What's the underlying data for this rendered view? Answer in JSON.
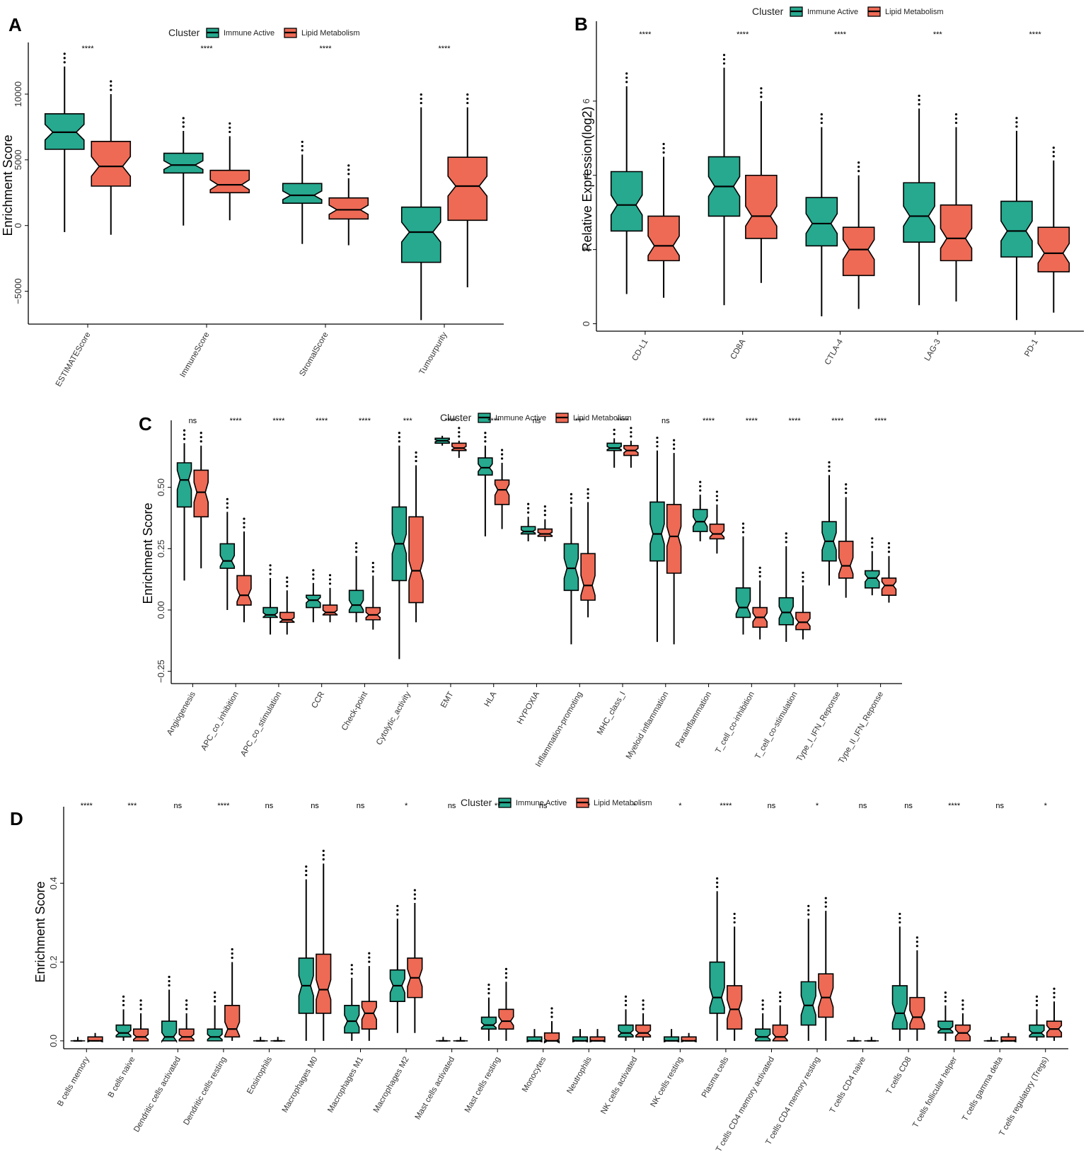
{
  "colors": {
    "immune_active": "#26A98F",
    "lipid_metabolism": "#EE6A55"
  },
  "legend": {
    "title": "Cluster",
    "series": [
      "Immune Active",
      "Lipid Metabolism"
    ]
  },
  "chart_data": [
    {
      "panel": "A",
      "type": "boxplot",
      "ylabel": "Enrichment Score",
      "ylim": [
        -7500,
        13500
      ],
      "yticks": [
        -5000,
        0,
        5000,
        10000
      ],
      "categories": [
        "ESTIMATEScore",
        "ImmuneScore",
        "StromalScore",
        "Tumourpurity"
      ],
      "significance": [
        "****",
        "****",
        "****",
        "****"
      ],
      "series": [
        {
          "name": "Immune Active",
          "stats": [
            [
              -500,
              5800,
              7100,
              8500,
              12100
            ],
            [
              0,
              4000,
              4600,
              5500,
              7200
            ],
            [
              -1400,
              1700,
              2300,
              3200,
              5400
            ],
            [
              -7200,
              -2800,
              -500,
              1400,
              9000
            ]
          ]
        },
        {
          "name": "Lipid Metabolism",
          "stats": [
            [
              -700,
              3000,
              4500,
              6400,
              10000
            ],
            [
              400,
              2500,
              3100,
              4200,
              6800
            ],
            [
              -1500,
              500,
              1200,
              2100,
              3600
            ],
            [
              -4700,
              400,
              3000,
              5200,
              9000
            ]
          ]
        }
      ]
    },
    {
      "panel": "B",
      "type": "boxplot",
      "ylabel": "Relative Expression(log2)",
      "ylim": [
        -0.2,
        8.0
      ],
      "yticks": [
        0,
        2,
        4,
        6
      ],
      "categories": [
        "CD-L1",
        "CD8A",
        "CTLA-4",
        "LAG-3",
        "PD-1"
      ],
      "significance": [
        "****",
        "****",
        "****",
        "***",
        "****"
      ],
      "series": [
        {
          "name": "Immune Active",
          "stats": [
            [
              0.8,
              2.5,
              3.2,
              4.1,
              6.4
            ],
            [
              0.5,
              2.9,
              3.7,
              4.5,
              6.9
            ],
            [
              0.2,
              2.1,
              2.7,
              3.4,
              5.3
            ],
            [
              0.5,
              2.2,
              2.9,
              3.8,
              5.8
            ],
            [
              0.1,
              1.8,
              2.5,
              3.3,
              5.2
            ]
          ]
        },
        {
          "name": "Lipid Metabolism",
          "stats": [
            [
              0.7,
              1.7,
              2.1,
              2.9,
              4.5
            ],
            [
              1.1,
              2.3,
              2.9,
              4.0,
              6.0
            ],
            [
              0.4,
              1.3,
              2.0,
              2.6,
              4.0
            ],
            [
              0.6,
              1.7,
              2.3,
              3.2,
              5.3
            ],
            [
              0.3,
              1.4,
              1.9,
              2.6,
              4.4
            ]
          ]
        }
      ]
    },
    {
      "panel": "C",
      "type": "boxplot",
      "ylabel": "Enrichment Score",
      "ylim": [
        -0.3,
        0.75
      ],
      "yticks": [
        -0.25,
        0.0,
        0.25,
        0.5
      ],
      "categories": [
        "Angiogenesis",
        "APC_co_inhibition",
        "APC_co_stimulation",
        "CCR",
        "Check-point",
        "Cytolytic_activity",
        "EMT",
        "HLA",
        "HYPOXIA",
        "Inflammation-promoting",
        "MHC_class_I",
        "Myeloid inflammation",
        "Parainflammation",
        "T_cell_co-inhibition",
        "T_cell_co-stimulation",
        "Type_I_IFN_Reponse",
        "Type_II_IFN_Reponse"
      ],
      "significance": [
        "ns",
        "****",
        "****",
        "****",
        "****",
        "***",
        "****",
        "****",
        "ns",
        "***",
        "****",
        "ns",
        "****",
        "****",
        "****",
        "****",
        "****"
      ],
      "series": [
        {
          "name": "Immune Active",
          "stats": [
            [
              0.12,
              0.42,
              0.53,
              0.6,
              0.68
            ],
            [
              0.0,
              0.17,
              0.2,
              0.27,
              0.4
            ],
            [
              -0.1,
              -0.03,
              -0.02,
              0.01,
              0.13
            ],
            [
              -0.05,
              0.01,
              0.04,
              0.06,
              0.11
            ],
            [
              -0.05,
              -0.01,
              0.02,
              0.08,
              0.22
            ],
            [
              -0.2,
              0.12,
              0.27,
              0.42,
              0.67
            ],
            [
              0.67,
              0.68,
              0.69,
              0.7,
              0.71
            ],
            [
              0.3,
              0.55,
              0.58,
              0.62,
              0.67
            ],
            [
              0.28,
              0.31,
              0.32,
              0.34,
              0.38
            ],
            [
              -0.14,
              0.08,
              0.17,
              0.27,
              0.42
            ],
            [
              0.58,
              0.65,
              0.66,
              0.68,
              0.7
            ],
            [
              -0.13,
              0.2,
              0.31,
              0.44,
              0.65
            ],
            [
              0.28,
              0.32,
              0.36,
              0.41,
              0.47
            ],
            [
              -0.1,
              -0.03,
              0.01,
              0.09,
              0.3
            ],
            [
              -0.13,
              -0.06,
              -0.01,
              0.05,
              0.26
            ],
            [
              0.1,
              0.2,
              0.28,
              0.36,
              0.55
            ],
            [
              0.06,
              0.09,
              0.13,
              0.16,
              0.24
            ]
          ]
        },
        {
          "name": "Lipid Metabolism",
          "stats": [
            [
              0.17,
              0.38,
              0.48,
              0.57,
              0.67
            ],
            [
              -0.05,
              0.02,
              0.06,
              0.14,
              0.32
            ],
            [
              -0.1,
              -0.05,
              -0.04,
              -0.01,
              0.08
            ],
            [
              -0.05,
              -0.02,
              -0.01,
              0.02,
              0.09
            ],
            [
              -0.08,
              -0.04,
              -0.02,
              0.01,
              0.14
            ],
            [
              -0.05,
              0.03,
              0.16,
              0.38,
              0.59
            ],
            [
              0.62,
              0.65,
              0.66,
              0.68,
              0.69
            ],
            [
              0.33,
              0.43,
              0.49,
              0.53,
              0.6
            ],
            [
              0.28,
              0.3,
              0.31,
              0.33,
              0.37
            ],
            [
              -0.03,
              0.04,
              0.1,
              0.23,
              0.44
            ],
            [
              0.58,
              0.63,
              0.65,
              0.67,
              0.69
            ],
            [
              -0.14,
              0.15,
              0.3,
              0.43,
              0.64
            ],
            [
              0.23,
              0.29,
              0.31,
              0.35,
              0.43
            ],
            [
              -0.12,
              -0.07,
              -0.03,
              0.01,
              0.12
            ],
            [
              -0.12,
              -0.08,
              -0.05,
              -0.01,
              0.1
            ],
            [
              0.05,
              0.13,
              0.18,
              0.28,
              0.46
            ],
            [
              0.03,
              0.06,
              0.1,
              0.13,
              0.22
            ]
          ]
        }
      ]
    },
    {
      "panel": "D",
      "type": "boxplot",
      "ylabel": "Enrichment Score",
      "ylim": [
        -0.02,
        0.58
      ],
      "yticks": [
        0.0,
        0.2,
        0.4
      ],
      "categories": [
        "B cells memory",
        "B cells naive",
        "Dendritic cells activated",
        "Dendritic cells resting",
        "Eosinophils",
        "Macrophages M0",
        "Macrophages M1",
        "Macrophages M2",
        "Mast cells activated",
        "Mast cells resting",
        "Monocytes",
        "Neutrophils",
        "NK cells activated",
        "NK cells resting",
        "Plasma cells",
        "T cells CD4 memory activated",
        "T cells CD4 memory resting",
        "T cells CD4 naive",
        "T cells CD8",
        "T cells follicular helper",
        "T cells gamma delta",
        "T cells regulatory (Tregs)"
      ],
      "significance": [
        "****",
        "***",
        "ns",
        "****",
        "ns",
        "ns",
        "ns",
        "*",
        "ns",
        "**",
        "ns",
        "*",
        "*",
        "*",
        "****",
        "ns",
        "*",
        "ns",
        "ns",
        "****",
        "ns",
        "*"
      ],
      "series": [
        {
          "name": "Immune Active",
          "stats": [
            [
              0.0,
              0.0,
              0.0,
              0.0,
              0.01
            ],
            [
              0.0,
              0.01,
              0.02,
              0.04,
              0.08
            ],
            [
              0.0,
              0.0,
              0.01,
              0.05,
              0.13
            ],
            [
              0.0,
              0.0,
              0.01,
              0.03,
              0.09
            ],
            [
              0.0,
              0.0,
              0.0,
              0.0,
              0.01
            ],
            [
              0.0,
              0.07,
              0.14,
              0.21,
              0.41
            ],
            [
              0.0,
              0.02,
              0.05,
              0.09,
              0.16
            ],
            [
              0.02,
              0.1,
              0.14,
              0.18,
              0.31
            ],
            [
              0.0,
              0.0,
              0.0,
              0.0,
              0.01
            ],
            [
              0.0,
              0.03,
              0.04,
              0.06,
              0.11
            ],
            [
              0.0,
              0.0,
              0.0,
              0.01,
              0.03
            ],
            [
              0.0,
              0.0,
              0.0,
              0.01,
              0.03
            ],
            [
              0.0,
              0.01,
              0.02,
              0.04,
              0.08
            ],
            [
              0.0,
              0.0,
              0.0,
              0.01,
              0.03
            ],
            [
              0.0,
              0.07,
              0.11,
              0.2,
              0.38
            ],
            [
              0.0,
              0.0,
              0.01,
              0.03,
              0.07
            ],
            [
              0.0,
              0.04,
              0.09,
              0.15,
              0.31
            ],
            [
              0.0,
              0.0,
              0.0,
              0.0,
              0.01
            ],
            [
              0.0,
              0.03,
              0.07,
              0.14,
              0.29
            ],
            [
              0.0,
              0.02,
              0.03,
              0.05,
              0.09
            ],
            [
              0.0,
              0.0,
              0.0,
              0.0,
              0.01
            ],
            [
              0.0,
              0.01,
              0.02,
              0.04,
              0.08
            ]
          ]
        },
        {
          "name": "Lipid Metabolism",
          "stats": [
            [
              0.0,
              0.0,
              0.0,
              0.01,
              0.02
            ],
            [
              0.0,
              0.0,
              0.01,
              0.03,
              0.07
            ],
            [
              0.0,
              0.0,
              0.01,
              0.03,
              0.07
            ],
            [
              0.0,
              0.01,
              0.03,
              0.09,
              0.2
            ],
            [
              0.0,
              0.0,
              0.0,
              0.0,
              0.01
            ],
            [
              0.0,
              0.07,
              0.13,
              0.22,
              0.45
            ],
            [
              0.0,
              0.03,
              0.07,
              0.1,
              0.19
            ],
            [
              0.02,
              0.11,
              0.16,
              0.21,
              0.35
            ],
            [
              0.0,
              0.0,
              0.0,
              0.0,
              0.01
            ],
            [
              0.0,
              0.03,
              0.05,
              0.08,
              0.15
            ],
            [
              0.0,
              0.0,
              0.0,
              0.02,
              0.05
            ],
            [
              0.0,
              0.0,
              0.0,
              0.01,
              0.03
            ],
            [
              0.0,
              0.01,
              0.02,
              0.04,
              0.07
            ],
            [
              0.0,
              0.0,
              0.0,
              0.01,
              0.02
            ],
            [
              0.0,
              0.03,
              0.08,
              0.14,
              0.29
            ],
            [
              0.0,
              0.0,
              0.01,
              0.04,
              0.09
            ],
            [
              0.0,
              0.06,
              0.11,
              0.17,
              0.33
            ],
            [
              0.0,
              0.0,
              0.0,
              0.0,
              0.01
            ],
            [
              0.0,
              0.03,
              0.06,
              0.11,
              0.23
            ],
            [
              0.0,
              0.0,
              0.02,
              0.04,
              0.07
            ],
            [
              0.0,
              0.0,
              0.0,
              0.01,
              0.02
            ],
            [
              0.0,
              0.01,
              0.03,
              0.05,
              0.1
            ]
          ]
        }
      ]
    }
  ]
}
